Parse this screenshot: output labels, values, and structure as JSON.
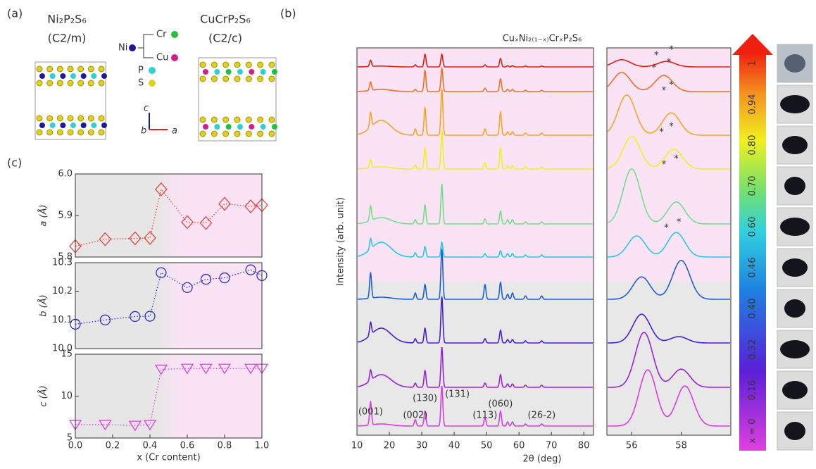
{
  "panel_labels": [
    "(a)",
    "(b)",
    "(c)"
  ],
  "structure": {
    "left_formula": "Ni₂P₂S₆",
    "left_group": "(C2/m)",
    "right_formula": "CuCrP₂S₆",
    "right_group": "(C2/c)",
    "legend": {
      "ni": "Ni",
      "cr": "Cr",
      "cu": "Cu",
      "p": "P",
      "s": "S"
    },
    "axes": {
      "c": "c",
      "b": "b",
      "a": "a"
    }
  },
  "chart_data": [
    {
      "type": "spectrum",
      "title": "CuₓNi₂₍₁₋ₓ₎CrₓP₂S₆",
      "y_label": "Intensity (arb. unit)",
      "x_label": "2θ (deg)",
      "xlim": [
        10,
        83
      ],
      "xticks": [
        10,
        20,
        30,
        40,
        50,
        60,
        70,
        80
      ],
      "peak_positions": [
        14.2,
        17.5,
        28,
        31,
        36.2,
        49.5,
        54.3,
        56.5,
        58,
        62,
        67
      ],
      "peak_widths": [
        0.3,
        3,
        0.3,
        0.3,
        0.3,
        0.3,
        0.3,
        0.3,
        0.3,
        0.3,
        0.3
      ],
      "peak_labels": [
        {
          "label": "(001)",
          "x": 14.2
        },
        {
          "label": "(002)",
          "x": 28
        },
        {
          "label": "(130)",
          "x": 31
        },
        {
          "label": "(131)",
          "x": 36.2
        },
        {
          "label": "(113)",
          "x": 49.5
        },
        {
          "label": "(060)",
          "x": 54.3
        },
        {
          "label": "(26-2)",
          "x": 67
        }
      ],
      "series": [
        {
          "name": "x = 0",
          "color": "#d63fe0",
          "values": [
            0.55,
            0.05,
            0.15,
            0.35,
            0.95,
            0.2,
            0.35,
            0.1,
            0.1,
            0.05,
            0.05
          ]
        },
        {
          "name": "0.16",
          "color": "#9b22e0",
          "values": [
            0.25,
            0.3,
            0.1,
            0.4,
            0.95,
            0.1,
            0.3,
            0.08,
            0.08,
            0.05,
            0.05
          ]
        },
        {
          "name": "0.32",
          "color": "#4a1fd0",
          "values": [
            0.3,
            0.35,
            0.1,
            0.35,
            1.1,
            0.1,
            0.3,
            0.08,
            0.08,
            0.05,
            0.05
          ]
        },
        {
          "name": "0.40",
          "color": "#1e5fd8",
          "values": [
            0.6,
            0.05,
            0.15,
            0.35,
            1.2,
            0.35,
            0.4,
            0.12,
            0.15,
            0.08,
            0.08
          ]
        },
        {
          "name": "0.46",
          "color": "#27c8ea",
          "values": [
            0.25,
            0.35,
            0.1,
            0.25,
            0.35,
            0.08,
            0.15,
            0.08,
            0.08,
            0.05,
            0.05
          ]
        },
        {
          "name": "0.60",
          "color": "#6ee08a",
          "values": [
            0.35,
            0.15,
            0.1,
            0.45,
            0.95,
            0.12,
            0.3,
            0.1,
            0.1,
            0.05,
            0.05
          ]
        },
        {
          "name": "0.70",
          "color": "#f0f020",
          "values": [
            0.2,
            0.05,
            0.1,
            0.5,
            0.9,
            0.15,
            0.5,
            0.08,
            0.08,
            0.05,
            0.05
          ]
        },
        {
          "name": "0.80",
          "color": "#f5a623",
          "values": [
            0.35,
            0.35,
            0.15,
            0.65,
            1.1,
            0.15,
            0.55,
            0.08,
            0.08,
            0.05,
            0.05
          ]
        },
        {
          "name": "0.94",
          "color": "#f07020",
          "values": [
            0.2,
            0.05,
            0.05,
            0.5,
            0.55,
            0.08,
            0.3,
            0.05,
            0.05,
            0.03,
            0.03
          ]
        },
        {
          "name": "1",
          "color": "#e02010",
          "values": [
            0.15,
            0.02,
            0.05,
            0.3,
            0.3,
            0.05,
            0.2,
            0.03,
            0.03,
            0.02,
            0.02
          ]
        }
      ]
    },
    {
      "type": "spectrum",
      "xlim": [
        55,
        60
      ],
      "xticks": [
        56,
        58
      ],
      "asterisk": "*",
      "peak_width": 0.35,
      "series": [
        {
          "color": "#d63fe0",
          "positions": [
            56.65,
            58.15
          ],
          "values": [
            1.33,
            0.95
          ]
        },
        {
          "color": "#9b22e0",
          "positions": [
            56.5,
            58.0
          ],
          "values": [
            1.3,
            0.43
          ]
        },
        {
          "color": "#4a1fd0",
          "positions": [
            56.4,
            57.9
          ],
          "values": [
            0.68,
            0.15
          ]
        },
        {
          "color": "#1e5fd8",
          "positions": [
            56.4,
            58.0
          ],
          "values": [
            0.53,
            0.92
          ]
        },
        {
          "color": "#27c8ea",
          "positions": [
            56.2,
            57.8
          ],
          "values": [
            0.5,
            0.58
          ],
          "asterisks": [
            57.4,
            57.9
          ]
        },
        {
          "color": "#6ee08a",
          "positions": [
            56.0,
            57.8
          ],
          "values": [
            1.3,
            0.52
          ],
          "asterisks": [
            57.3,
            57.8
          ]
        },
        {
          "color": "#f0f020",
          "positions": [
            56.0,
            57.7
          ],
          "values": [
            0.77,
            0.47
          ],
          "asterisks": [
            57.2,
            57.6
          ]
        },
        {
          "color": "#f5a623",
          "positions": [
            55.8,
            57.6
          ],
          "values": [
            0.95,
            0.53
          ],
          "asterisks": [
            57.3,
            57.6
          ]
        },
        {
          "color": "#f07020",
          "positions": [
            55.6,
            57.3
          ],
          "values": [
            0.45,
            0.38
          ],
          "asterisks": [
            56.9,
            57.5
          ]
        },
        {
          "color": "#e02010",
          "positions": [
            55.6,
            57.4
          ],
          "values": [
            0.17,
            0.13
          ],
          "asterisks": [
            57.0,
            57.6
          ]
        }
      ]
    },
    {
      "type": "scatter",
      "y_label": "a (Å)",
      "marker": "diamond",
      "color": "#e8443a",
      "shade_boundary": 0.43,
      "x": [
        0,
        0.16,
        0.32,
        0.4,
        0.46,
        0.6,
        0.7,
        0.8,
        0.94,
        1.0
      ],
      "values": [
        5.826,
        5.843,
        5.845,
        5.846,
        5.963,
        5.884,
        5.882,
        5.928,
        5.922,
        5.925
      ],
      "xlim": [
        0,
        1.0
      ],
      "ylim": [
        5.8,
        6.0
      ],
      "yticks": [
        {
          "value": 5.8,
          "label": "5.8"
        },
        {
          "value": 5.9,
          "label": "5.9"
        },
        {
          "value": 6.0,
          "label": "6.0"
        }
      ]
    },
    {
      "type": "scatter",
      "y_label": "b (Å)",
      "marker": "circle",
      "color": "#3030d0",
      "shade_boundary": 0.43,
      "x": [
        0,
        0.16,
        0.32,
        0.4,
        0.46,
        0.6,
        0.7,
        0.8,
        0.94,
        1.0
      ],
      "values": [
        10.085,
        10.1,
        10.112,
        10.113,
        10.265,
        10.213,
        10.242,
        10.247,
        10.275,
        10.255
      ],
      "xlim": [
        0,
        1.0
      ],
      "ylim": [
        10.0,
        10.3
      ],
      "yticks": [
        {
          "value": 10.0,
          "label": "10.0"
        },
        {
          "value": 10.1,
          "label": "10.1"
        },
        {
          "value": 10.2,
          "label": "10.2"
        },
        {
          "value": 10.3,
          "label": "10.3"
        }
      ]
    },
    {
      "type": "scatter",
      "y_label": "c (Å)",
      "marker": "triangle",
      "color": "#e040e0",
      "shade_boundary": 0.43,
      "x_label": "x (Cr content)",
      "x": [
        0,
        0.16,
        0.32,
        0.4,
        0.46,
        0.6,
        0.7,
        0.8,
        0.94,
        1.0
      ],
      "values": [
        6.6,
        6.6,
        6.5,
        6.6,
        13.2,
        13.3,
        13.3,
        13.3,
        13.3,
        13.3
      ],
      "xlim": [
        0,
        1.0
      ],
      "ylim": [
        5,
        15
      ],
      "yticks": [
        5,
        10,
        15
      ],
      "xticks": [
        {
          "value": 0,
          "label": "0.0"
        },
        {
          "value": 0.2,
          "label": "0.2"
        },
        {
          "value": 0.4,
          "label": "0.4"
        },
        {
          "value": 0.6,
          "label": "0.6"
        },
        {
          "value": 0.8,
          "label": "0.8"
        },
        {
          "value": 1.0,
          "label": "1.0"
        }
      ]
    }
  ]
}
